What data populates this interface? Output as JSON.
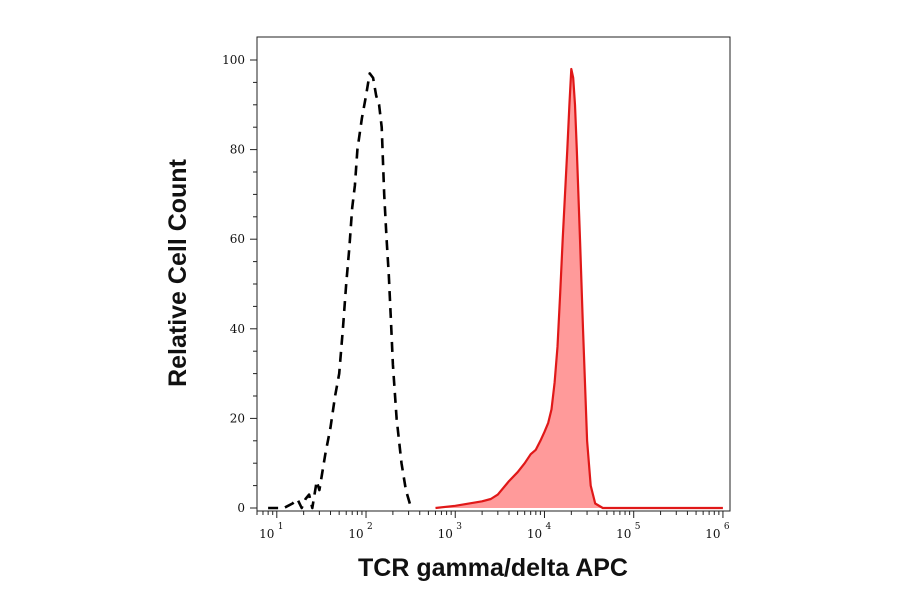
{
  "chart_data": {
    "type": "area",
    "xlabel": "TCR gamma/delta APC",
    "ylabel": "Relative Cell Count",
    "xscale": "log",
    "xlim": [
      6,
      1200000
    ],
    "ylim": [
      0,
      105
    ],
    "x_ticks": [
      {
        "value": 10,
        "base": "10",
        "exp": "1"
      },
      {
        "value": 100,
        "base": "10",
        "exp": "2"
      },
      {
        "value": 1000,
        "base": "10",
        "exp": "3"
      },
      {
        "value": 10000,
        "base": "10",
        "exp": "4"
      },
      {
        "value": 100000,
        "base": "10",
        "exp": "5"
      },
      {
        "value": 1000000,
        "base": "10",
        "exp": "6"
      }
    ],
    "y_ticks": [
      0,
      20,
      40,
      60,
      80,
      100
    ],
    "series": [
      {
        "style": "dashed",
        "color": "#000000",
        "fill": "none",
        "points": [
          [
            8,
            0
          ],
          [
            12,
            0
          ],
          [
            15,
            1
          ],
          [
            17,
            2
          ],
          [
            19,
            0
          ],
          [
            21,
            2
          ],
          [
            23,
            3
          ],
          [
            25,
            0
          ],
          [
            28,
            6
          ],
          [
            30,
            4
          ],
          [
            35,
            12
          ],
          [
            40,
            18
          ],
          [
            45,
            25
          ],
          [
            50,
            30
          ],
          [
            55,
            40
          ],
          [
            60,
            50
          ],
          [
            65,
            58
          ],
          [
            70,
            67
          ],
          [
            75,
            72
          ],
          [
            80,
            80
          ],
          [
            90,
            87
          ],
          [
            100,
            92
          ],
          [
            110,
            97
          ],
          [
            120,
            96
          ],
          [
            130,
            92
          ],
          [
            140,
            90
          ],
          [
            150,
            85
          ],
          [
            160,
            70
          ],
          [
            170,
            60
          ],
          [
            180,
            52
          ],
          [
            190,
            42
          ],
          [
            200,
            32
          ],
          [
            220,
            20
          ],
          [
            250,
            10
          ],
          [
            280,
            4
          ],
          [
            320,
            0
          ]
        ]
      },
      {
        "style": "solid",
        "color": "#e01818",
        "fill": "#ff9a9a",
        "points": [
          [
            600,
            0
          ],
          [
            1000,
            0.5
          ],
          [
            2000,
            1.5
          ],
          [
            2500,
            2
          ],
          [
            3000,
            3
          ],
          [
            4000,
            6
          ],
          [
            5000,
            8
          ],
          [
            6000,
            10
          ],
          [
            7000,
            12
          ],
          [
            8000,
            13
          ],
          [
            9000,
            15
          ],
          [
            10000,
            17
          ],
          [
            11000,
            19
          ],
          [
            12000,
            22
          ],
          [
            13000,
            28
          ],
          [
            14000,
            36
          ],
          [
            15000,
            48
          ],
          [
            16000,
            60
          ],
          [
            17000,
            70
          ],
          [
            18000,
            80
          ],
          [
            19000,
            90
          ],
          [
            20000,
            98
          ],
          [
            21000,
            96
          ],
          [
            22000,
            90
          ],
          [
            23000,
            80
          ],
          [
            25000,
            60
          ],
          [
            27000,
            40
          ],
          [
            30000,
            15
          ],
          [
            33000,
            5
          ],
          [
            37000,
            1
          ],
          [
            45000,
            0
          ],
          [
            1000000,
            0
          ]
        ]
      }
    ]
  }
}
